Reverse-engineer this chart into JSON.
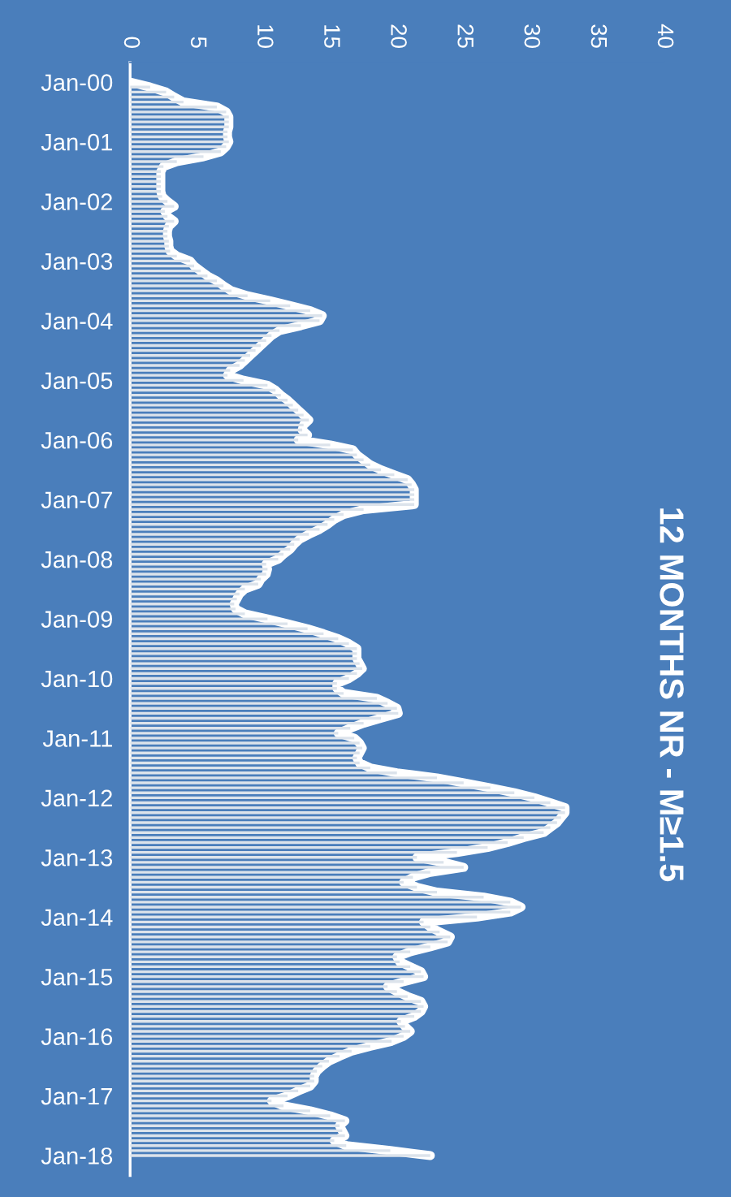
{
  "chart_data": {
    "type": "bar",
    "orientation": "horizontal",
    "title": "12 MONTHS NR - M≥1.5",
    "categories": [
      "Jan-00",
      null,
      null,
      null,
      null,
      null,
      null,
      null,
      null,
      null,
      null,
      null,
      "Jan-01",
      null,
      null,
      null,
      null,
      null,
      null,
      null,
      null,
      null,
      null,
      null,
      "Jan-02",
      null,
      null,
      null,
      null,
      null,
      null,
      null,
      null,
      null,
      null,
      null,
      "Jan-03",
      null,
      null,
      null,
      null,
      null,
      null,
      null,
      null,
      null,
      null,
      null,
      "Jan-04",
      null,
      null,
      null,
      null,
      null,
      null,
      null,
      null,
      null,
      null,
      null,
      "Jan-05",
      null,
      null,
      null,
      null,
      null,
      null,
      null,
      null,
      null,
      null,
      null,
      "Jan-06",
      null,
      null,
      null,
      null,
      null,
      null,
      null,
      null,
      null,
      null,
      null,
      "Jan-07",
      null,
      null,
      null,
      null,
      null,
      null,
      null,
      null,
      null,
      null,
      null,
      "Jan-08",
      null,
      null,
      null,
      null,
      null,
      null,
      null,
      null,
      null,
      null,
      null,
      "Jan-09",
      null,
      null,
      null,
      null,
      null,
      null,
      null,
      null,
      null,
      null,
      null,
      "Jan-10",
      null,
      null,
      null,
      null,
      null,
      null,
      null,
      null,
      null,
      null,
      null,
      "Jan-11",
      null,
      null,
      null,
      null,
      null,
      null,
      null,
      null,
      null,
      null,
      null,
      "Jan-12",
      null,
      null,
      null,
      null,
      null,
      null,
      null,
      null,
      null,
      null,
      null,
      "Jan-13",
      null,
      null,
      null,
      null,
      null,
      null,
      null,
      null,
      null,
      null,
      null,
      "Jan-14",
      null,
      null,
      null,
      null,
      null,
      null,
      null,
      null,
      null,
      null,
      null,
      "Jan-15",
      null,
      null,
      null,
      null,
      null,
      null,
      null,
      null,
      null,
      null,
      null,
      "Jan-16",
      null,
      null,
      null,
      null,
      null,
      null,
      null,
      null,
      null,
      null,
      null,
      "Jan-17",
      null,
      null,
      null,
      null,
      null,
      null,
      null,
      null,
      null,
      null,
      null,
      "Jan-18"
    ],
    "series": [
      {
        "color": "#dce3eb",
        "values": [
          0,
          1.5,
          2.7,
          3.3,
          4.0,
          6.5,
          7.2,
          7.4,
          7.4,
          7.4,
          7.3,
          7.3,
          7.4,
          7.2,
          6.8,
          5.5,
          3.5,
          2.5,
          2.3,
          2.3,
          2.3,
          2.3,
          2.3,
          2.4,
          2.8,
          3.3,
          2.6,
          2.8,
          3.3,
          2.9,
          2.8,
          2.8,
          2.9,
          2.9,
          3.0,
          3.5,
          4.5,
          4.8,
          5.3,
          5.8,
          6.5,
          7.0,
          7.6,
          8.8,
          10.5,
          12,
          13.5,
          14.4,
          14.2,
          12.8,
          11.2,
          10.6,
          10.2,
          9.8,
          9.4,
          9.0,
          8.6,
          8.2,
          7.5,
          7.3,
          8.5,
          10.3,
          10.9,
          11.3,
          11.8,
          12.2,
          12.6,
          13.0,
          13.4,
          13.0,
          12.9,
          13.3,
          12.6,
          15,
          16.7,
          17,
          17.5,
          18,
          18.8,
          19.8,
          20.8,
          21.1,
          21.3,
          21.3,
          21.3,
          21.3,
          17.5,
          16,
          15.3,
          14.8,
          14.2,
          13.4,
          12.7,
          12.3,
          12,
          11.5,
          11.1,
          10.2,
          10.3,
          10.2,
          9.8,
          9.6,
          8.6,
          8.2,
          8.0,
          7.8,
          7.9,
          8.6,
          10.3,
          11.8,
          13.3,
          14.5,
          15.6,
          16.4,
          17,
          17,
          17,
          17.2,
          17.4,
          17.0,
          16.4,
          15.5,
          15.5,
          16.0,
          18.5,
          19.3,
          20.0,
          20.1,
          18.8,
          17.5,
          16.5,
          15.6,
          16.8,
          17.2,
          17.4,
          17.2,
          17.0,
          17.2,
          18.0,
          20,
          23,
          25,
          27,
          28.8,
          30.3,
          31.5,
          32.6,
          32.6,
          32.3,
          32,
          31.5,
          31,
          29.5,
          28.3,
          26.8,
          24.5,
          21.5,
          23.5,
          25,
          22.5,
          21.2,
          20.5,
          21.5,
          23,
          26.5,
          28.5,
          29.3,
          28.5,
          26,
          22,
          22.5,
          23.2,
          24,
          23.8,
          22.5,
          21,
          20,
          20.2,
          21,
          21.8,
          22,
          20.5,
          19.3,
          20,
          20.8,
          21.8,
          22,
          21.8,
          21.3,
          20.3,
          20.6,
          21,
          20.5,
          19.6,
          18,
          16.6,
          15.7,
          14.9,
          14.4,
          14,
          13.8,
          13.8,
          13.5,
          12.6,
          11.8,
          10.6,
          11.5,
          13.5,
          15,
          16.1,
          15.7,
          15.9,
          16.1,
          15.3,
          16.2,
          19.5,
          22.5
        ]
      },
      {
        "type": "line",
        "color": "#ffffff",
        "values": [
          0,
          1.5,
          2.7,
          3.3,
          4.0,
          6.5,
          7.2,
          7.4,
          7.4,
          7.4,
          7.3,
          7.3,
          7.4,
          7.2,
          6.8,
          5.5,
          3.5,
          2.5,
          2.3,
          2.3,
          2.3,
          2.3,
          2.3,
          2.4,
          2.8,
          3.3,
          2.6,
          2.8,
          3.3,
          2.9,
          2.8,
          2.8,
          2.9,
          2.9,
          3.0,
          3.5,
          4.5,
          4.8,
          5.3,
          5.8,
          6.5,
          7.0,
          7.6,
          8.8,
          10.5,
          12,
          13.5,
          14.4,
          14.2,
          12.8,
          11.2,
          10.6,
          10.2,
          9.8,
          9.4,
          9.0,
          8.6,
          8.2,
          7.5,
          7.3,
          8.5,
          10.3,
          10.9,
          11.3,
          11.8,
          12.2,
          12.6,
          13.0,
          13.4,
          13.0,
          12.9,
          13.3,
          12.6,
          15,
          16.7,
          17,
          17.5,
          18,
          18.8,
          19.8,
          20.8,
          21.1,
          21.3,
          21.3,
          21.3,
          21.3,
          17.5,
          16,
          15.3,
          14.8,
          14.2,
          13.4,
          12.7,
          12.3,
          12,
          11.5,
          11.1,
          10.2,
          10.3,
          10.2,
          9.8,
          9.6,
          8.6,
          8.2,
          8.0,
          7.8,
          7.9,
          8.6,
          10.3,
          11.8,
          13.3,
          14.5,
          15.6,
          16.4,
          17,
          17,
          17,
          17.2,
          17.4,
          17.0,
          16.4,
          15.5,
          15.5,
          16.0,
          18.5,
          19.3,
          20.0,
          20.1,
          18.8,
          17.5,
          16.5,
          15.6,
          16.8,
          17.2,
          17.4,
          17.2,
          17.0,
          17.2,
          18.0,
          20,
          23,
          25,
          27,
          28.8,
          30.3,
          31.5,
          32.6,
          32.6,
          32.3,
          32,
          31.5,
          31,
          29.5,
          28.3,
          26.8,
          24.5,
          21.5,
          23.5,
          25,
          22.5,
          21.2,
          20.5,
          21.5,
          23,
          26.5,
          28.5,
          29.3,
          28.5,
          26,
          22,
          22.5,
          23.2,
          24,
          23.8,
          22.5,
          21,
          20,
          20.2,
          21,
          21.8,
          22,
          20.5,
          19.3,
          20,
          20.8,
          21.8,
          22,
          21.8,
          21.3,
          20.3,
          20.6,
          21,
          20.5,
          19.6,
          18,
          16.6,
          15.7,
          14.9,
          14.4,
          14,
          13.8,
          13.8,
          13.5,
          12.6,
          11.8,
          10.6,
          11.5,
          13.5,
          15,
          16.1,
          15.7,
          15.9,
          16.1,
          15.3,
          16.2,
          19.5,
          22.5
        ]
      }
    ],
    "xlim": [
      0,
      40
    ],
    "xticks": [
      0,
      5,
      10,
      15,
      20,
      25,
      30,
      35,
      40
    ],
    "grid": false
  }
}
